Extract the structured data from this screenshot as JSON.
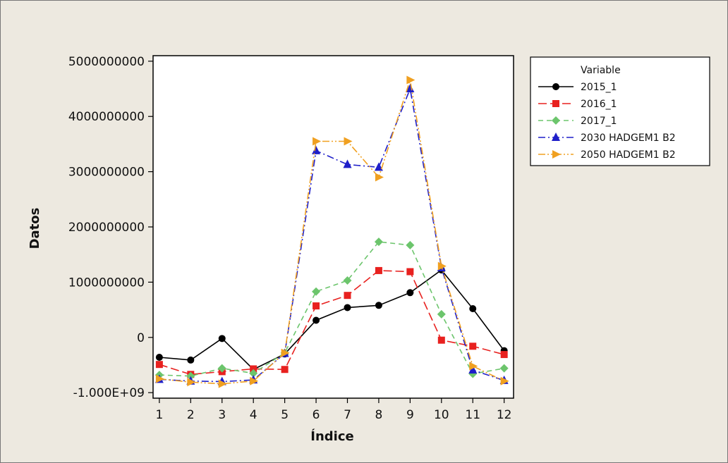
{
  "chart_data": {
    "type": "line",
    "xlabel": "Índice",
    "ylabel": "Datos",
    "x": [
      1,
      2,
      3,
      4,
      5,
      6,
      7,
      8,
      9,
      10,
      11,
      12
    ],
    "xlim": [
      0.8,
      12.3
    ],
    "ylim": [
      -1100000000,
      5100000000
    ],
    "yticks": [
      -1000000000,
      0,
      1000000000,
      2000000000,
      3000000000,
      4000000000,
      5000000000
    ],
    "ytick_labels": [
      "-1.000E+09",
      "0",
      "1000000000",
      "2000000000",
      "3000000000",
      "4000000000",
      "5000000000"
    ],
    "xtick_labels": [
      "1",
      "2",
      "3",
      "4",
      "5",
      "6",
      "7",
      "8",
      "9",
      "10",
      "11",
      "12"
    ],
    "grid": false,
    "legend": {
      "title": "Variable",
      "position": "right"
    },
    "series": [
      {
        "name": "2015_1",
        "color": "#000000",
        "marker": "circle",
        "dash": "solid",
        "values": [
          -360000000,
          -410000000,
          -20000000,
          -580000000,
          -300000000,
          310000000,
          540000000,
          580000000,
          810000000,
          1220000000,
          520000000,
          -240000000
        ]
      },
      {
        "name": "2016_1",
        "color": "#e8211f",
        "marker": "square",
        "dash": "long-dash",
        "values": [
          -490000000,
          -670000000,
          -620000000,
          -570000000,
          -580000000,
          570000000,
          760000000,
          1210000000,
          1190000000,
          -50000000,
          -160000000,
          -310000000
        ]
      },
      {
        "name": "2017_1",
        "color": "#6cc56c",
        "marker": "diamond",
        "dash": "dash",
        "values": [
          -680000000,
          -700000000,
          -560000000,
          -650000000,
          -280000000,
          830000000,
          1030000000,
          1730000000,
          1670000000,
          420000000,
          -660000000,
          -560000000
        ]
      },
      {
        "name": "2030 HADGEM1 B2",
        "color": "#1f1fc9",
        "marker": "triangle-up",
        "dash": "dash-dot",
        "values": [
          -760000000,
          -790000000,
          -800000000,
          -770000000,
          -290000000,
          3380000000,
          3130000000,
          3080000000,
          4500000000,
          1260000000,
          -590000000,
          -780000000
        ]
      },
      {
        "name": "2050 HADGEM1 B2",
        "color": "#f0a020",
        "marker": "triangle-right",
        "dash": "dash-dot-dot",
        "values": [
          -750000000,
          -810000000,
          -840000000,
          -790000000,
          -280000000,
          3550000000,
          3550000000,
          2900000000,
          4660000000,
          1290000000,
          -520000000,
          -790000000
        ]
      }
    ]
  }
}
